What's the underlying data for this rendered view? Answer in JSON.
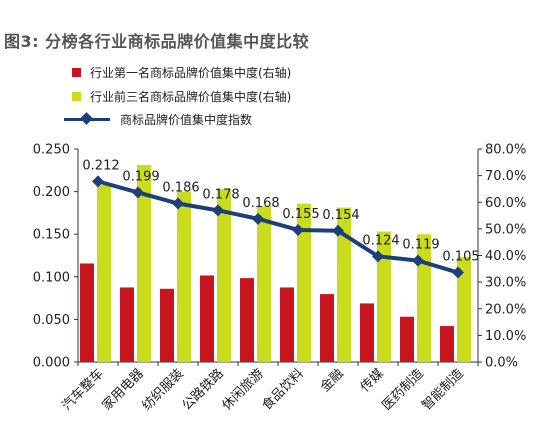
{
  "title": "图3: 分榜各行业商标品牌价值集中度比较",
  "legend": [
    {
      "label": "行业第一名商标品牌价值集中度(右轴)",
      "color": "#c8141e",
      "kind": "bar"
    },
    {
      "label": "行业前三名商标品牌价值集中度(右轴)",
      "color": "#c9dc1e",
      "kind": "bar"
    },
    {
      "label": "商标品牌价值集中度指数",
      "color": "#1c3f7a",
      "kind": "line"
    }
  ],
  "chart_data": {
    "type": "bar",
    "categories": [
      "汽车整车",
      "家用电器",
      "纺织服装",
      "公路铁路",
      "休闲旅游",
      "食品饮料",
      "金融",
      "传媒",
      "医药制造",
      "智能制造"
    ],
    "series": [
      {
        "name": "行业第一名商标品牌价值集中度(右轴)",
        "axis": "right",
        "type": "bar",
        "color": "#c8141e",
        "values": [
          0.37,
          0.28,
          0.275,
          0.325,
          0.315,
          0.28,
          0.255,
          0.22,
          0.17,
          0.135
        ]
      },
      {
        "name": "行业前三名商标品牌价值集中度(右轴)",
        "axis": "right",
        "type": "bar",
        "color": "#c9dc1e",
        "values": [
          0.665,
          0.74,
          0.64,
          0.65,
          0.585,
          0.595,
          0.58,
          0.49,
          0.48,
          0.395
        ]
      },
      {
        "name": "商标品牌价值集中度指数",
        "axis": "left",
        "type": "line",
        "color": "#1c3f7a",
        "values": [
          0.212,
          0.199,
          0.186,
          0.178,
          0.168,
          0.155,
          0.154,
          0.124,
          0.119,
          0.105
        ],
        "labels": [
          "0.212",
          "0.199",
          "0.186",
          "0.178",
          "0.168",
          "0.155",
          "0.154",
          "0.124",
          "0.119",
          "0.105"
        ]
      }
    ],
    "left_axis": {
      "min": 0,
      "max": 0.25,
      "ticks": [
        "0.000",
        "0.050",
        "0.100",
        "0.150",
        "0.200",
        "0.250"
      ]
    },
    "right_axis": {
      "min": 0,
      "max": 0.8,
      "ticks": [
        "0.0%",
        "10.0%",
        "20.0%",
        "30.0%",
        "40.0%",
        "50.0%",
        "60.0%",
        "70.0%",
        "80.0%"
      ]
    },
    "grid": false,
    "legend_position": "top-left"
  }
}
